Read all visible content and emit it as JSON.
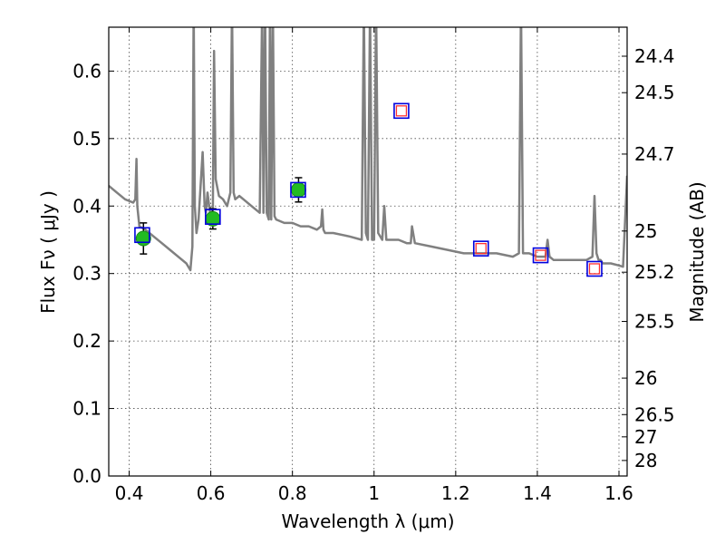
{
  "chart_data": {
    "type": "scatter",
    "title": "",
    "xlabel": "Wavelength  λ (μm)",
    "ylabel": "Flux  Fν  ( μJy )",
    "ylabel_right": "Magnitude (AB)",
    "xlim": [
      0.35,
      1.62
    ],
    "ylim": [
      0.0,
      0.665
    ],
    "grid": true,
    "x_ticks": [
      0.4,
      0.6,
      0.8,
      1.0,
      1.2,
      1.4,
      1.6
    ],
    "x_tick_labels": [
      "0.4",
      "0.6",
      "0.8",
      "1",
      "1.2",
      "1.4",
      "1.6"
    ],
    "y_ticks": [
      0.0,
      0.1,
      0.2,
      0.3,
      0.4,
      0.5,
      0.6
    ],
    "y_tick_labels": [
      "0.0",
      "0.1",
      "0.2",
      "0.3",
      "0.4",
      "0.5",
      "0.6"
    ],
    "right_ticks": [
      {
        "mag": "24.4",
        "flux": 0.622
      },
      {
        "mag": "24.5",
        "flux": 0.568
      },
      {
        "mag": "24.7",
        "flux": 0.477
      },
      {
        "mag": "25",
        "flux": 0.363
      },
      {
        "mag": "25.2",
        "flux": 0.302
      },
      {
        "mag": "25.5",
        "flux": 0.229
      },
      {
        "mag": "26",
        "flux": 0.145
      },
      {
        "mag": "26.5",
        "flux": 0.091
      },
      {
        "mag": "27",
        "flux": 0.058
      },
      {
        "mag": "28",
        "flux": 0.023
      }
    ],
    "series": [
      {
        "style": "line",
        "color": "#808080",
        "x": [
          0.35,
          0.37,
          0.39,
          0.41,
          0.415,
          0.418,
          0.42,
          0.425,
          0.44,
          0.46,
          0.48,
          0.5,
          0.52,
          0.54,
          0.55,
          0.555,
          0.558,
          0.561,
          0.565,
          0.57,
          0.58,
          0.585,
          0.588,
          0.592,
          0.6,
          0.605,
          0.608,
          0.612,
          0.615,
          0.62,
          0.63,
          0.64,
          0.648,
          0.652,
          0.656,
          0.66,
          0.67,
          0.68,
          0.7,
          0.72,
          0.726,
          0.729,
          0.733,
          0.737,
          0.742,
          0.745,
          0.748,
          0.752,
          0.756,
          0.76,
          0.78,
          0.8,
          0.82,
          0.84,
          0.86,
          0.87,
          0.873,
          0.876,
          0.88,
          0.9,
          0.94,
          0.97,
          0.975,
          0.98,
          0.985,
          0.99,
          0.995,
          1.0,
          1.005,
          1.01,
          1.02,
          1.025,
          1.03,
          1.06,
          1.08,
          1.09,
          1.093,
          1.1,
          1.14,
          1.18,
          1.22,
          1.26,
          1.3,
          1.34,
          1.355,
          1.36,
          1.365,
          1.37,
          1.38,
          1.4,
          1.42,
          1.425,
          1.43,
          1.44,
          1.48,
          1.52,
          1.535,
          1.54,
          1.545,
          1.55,
          1.555,
          1.56,
          1.58,
          1.6,
          1.61,
          1.62
        ],
        "y": [
          0.43,
          0.42,
          0.41,
          0.405,
          0.41,
          0.47,
          0.4,
          0.37,
          0.365,
          0.355,
          0.345,
          0.335,
          0.325,
          0.315,
          0.305,
          0.34,
          0.7,
          0.4,
          0.36,
          0.38,
          0.48,
          0.4,
          0.39,
          0.42,
          0.38,
          0.4,
          0.63,
          0.44,
          0.43,
          0.415,
          0.41,
          0.4,
          0.42,
          0.7,
          0.42,
          0.41,
          0.415,
          0.41,
          0.4,
          0.39,
          0.7,
          0.39,
          0.7,
          0.39,
          0.38,
          0.7,
          0.38,
          0.7,
          0.385,
          0.38,
          0.375,
          0.375,
          0.37,
          0.37,
          0.365,
          0.37,
          0.395,
          0.365,
          0.36,
          0.36,
          0.355,
          0.35,
          0.7,
          0.36,
          0.35,
          0.7,
          0.35,
          0.35,
          0.7,
          0.36,
          0.35,
          0.4,
          0.35,
          0.35,
          0.345,
          0.345,
          0.37,
          0.345,
          0.34,
          0.335,
          0.33,
          0.33,
          0.33,
          0.325,
          0.33,
          0.7,
          0.33,
          0.33,
          0.33,
          0.325,
          0.325,
          0.35,
          0.325,
          0.32,
          0.32,
          0.32,
          0.325,
          0.415,
          0.33,
          0.32,
          0.32,
          0.315,
          0.315,
          0.312,
          0.31,
          0.445
        ]
      },
      {
        "style": "filled-circle",
        "color": "#22bb22",
        "x": [
          0.435,
          0.605,
          0.815
        ],
        "y": [
          0.352,
          0.381,
          0.424
        ],
        "yerr": [
          0.023,
          0.015,
          0.018
        ]
      },
      {
        "style": "open-square",
        "color": "#0000dd",
        "x": [
          0.432,
          0.605,
          0.814,
          1.067,
          1.262,
          1.408,
          1.54
        ],
        "y": [
          0.357,
          0.384,
          0.424,
          0.541,
          0.337,
          0.327,
          0.307
        ]
      },
      {
        "style": "open-square-small",
        "color": "#ff3333",
        "x": [
          1.067,
          1.262,
          1.408,
          1.54
        ],
        "y": [
          0.541,
          0.337,
          0.327,
          0.307
        ]
      }
    ]
  }
}
